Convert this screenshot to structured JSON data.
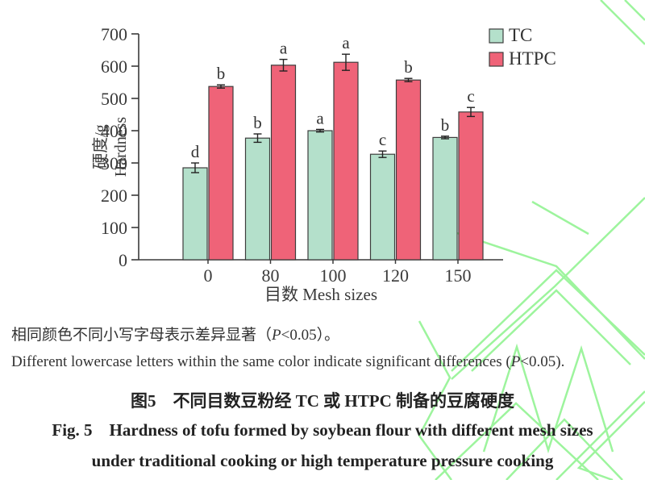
{
  "colors": {
    "tc_fill": "#b4e0cb",
    "htpc_fill": "#ef6378",
    "bar_stroke": "#3d3d3d",
    "axis": "#3a3a3a",
    "watermark": "#9df49d"
  },
  "chart_data": {
    "type": "bar",
    "categories": [
      "0",
      "80",
      "100",
      "120",
      "150"
    ],
    "series": [
      {
        "name": "TC",
        "color": "#b4e0cb",
        "values": [
          285,
          377,
          400,
          327,
          379
        ],
        "errors": [
          15,
          13,
          4,
          10,
          4
        ],
        "letters": [
          "d",
          "b",
          "a",
          "c",
          "b"
        ]
      },
      {
        "name": "HTPC",
        "color": "#ef6378",
        "values": [
          537,
          603,
          612,
          557,
          458
        ],
        "errors": [
          5,
          18,
          25,
          5,
          14
        ],
        "letters": [
          "b",
          "a",
          "a",
          "b",
          "c"
        ]
      }
    ],
    "title": "",
    "ylabel_zh": "硬度/g",
    "ylabel_en": "Hardness",
    "xlabel": "目数 Mesh sizes",
    "ylim": [
      0,
      700
    ],
    "ytick_step": 100,
    "grid": false,
    "legend_position": "top-right"
  },
  "caption": {
    "line1_zh": "相同颜色不同小写字母表示差异显著（P<0.05）。",
    "line2_en": "Different lowercase letters within the same color indicate significant differences (P<0.05)."
  },
  "figure_title": {
    "zh": "图5　不同目数豆粉经 TC 或 HTPC 制备的豆腐硬度",
    "en_line1": "Fig. 5  Hardness of tofu formed by soybean flour with different mesh sizes",
    "en_line2": "under traditional cooking or high temperature pressure cooking"
  }
}
